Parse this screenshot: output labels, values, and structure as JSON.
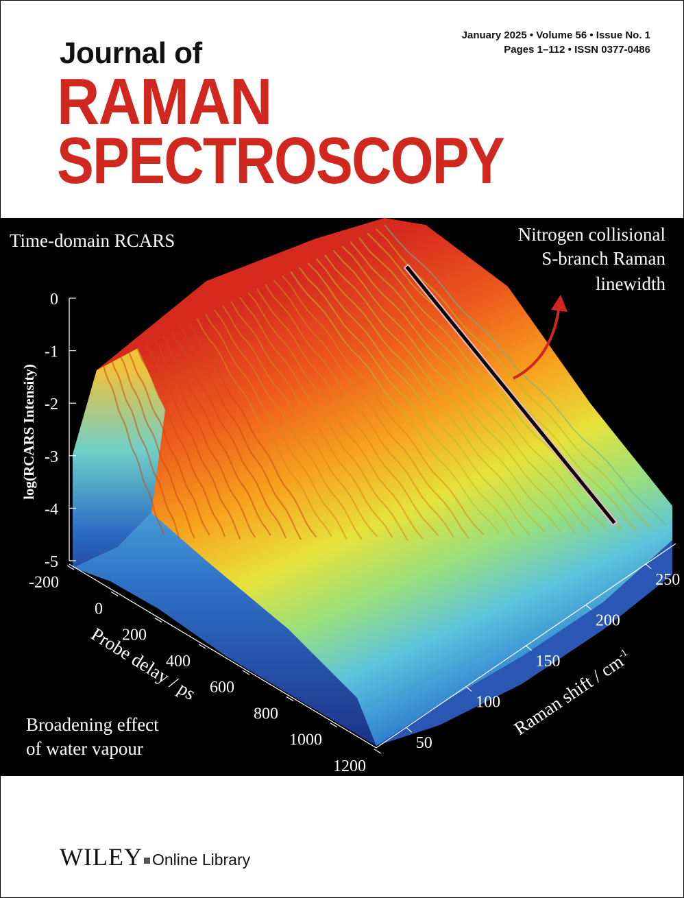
{
  "issue": {
    "line1": "January 2025 • Volume 56 • Issue No. 1",
    "line2": "Pages 1–112 • ISSN 0377-0486"
  },
  "journal": {
    "title_small": "Journal of",
    "title_line1": "RAMAN",
    "title_line2": "SPECTROSCOPY"
  },
  "cover_art": {
    "annotation_top_left": "Time-domain RCARS",
    "annotation_top_right": [
      "Nitrogen collisional",
      "S-branch Raman",
      "linewidth"
    ],
    "annotation_bottom_left": [
      "Broadening effect",
      "of water vapour"
    ],
    "colors": {
      "arrow": "#d0281f",
      "title": "#d0281f"
    }
  },
  "chart_data": {
    "type": "surface",
    "zlabel": "log(RCARS Intensity)",
    "xlabel": "Probe delay / ps",
    "ylabel": "Raman shift / cm",
    "ylabel_superscript": "-1",
    "z_ticks": [
      "0",
      "-1",
      "-2",
      "-3",
      "-4",
      "-5"
    ],
    "x_ticks": [
      "-200",
      "0",
      "200",
      "400",
      "600",
      "800",
      "1000",
      "1200"
    ],
    "y_ticks": [
      "50",
      "100",
      "150",
      "200",
      "250"
    ],
    "zlim": [
      -5,
      0
    ],
    "xlim": [
      -200,
      1200
    ],
    "ylim": [
      25,
      275
    ],
    "colormap": "jet"
  },
  "publisher": {
    "name": "WILEY",
    "product": "Online Library"
  }
}
